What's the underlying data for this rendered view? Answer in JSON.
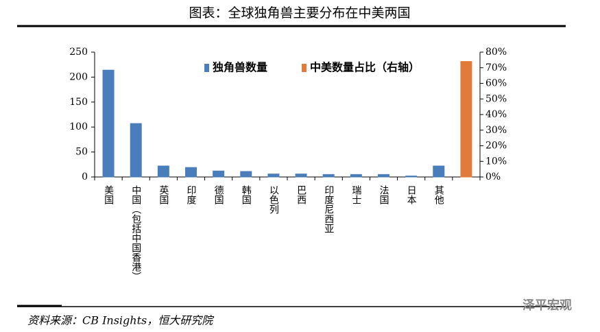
{
  "chart_data": {
    "type": "bar",
    "title": "图表：全球独角兽主要分布在中美两国",
    "source": "资料来源：CB Insights，恒大研究院",
    "watermark": "泽平宏观",
    "categories": [
      "美国",
      "中国（包括中国香港）",
      "英国",
      "印度",
      "德国",
      "韩国",
      "以色列",
      "巴西",
      "印度尼西亚",
      "瑞士",
      "法国",
      "日本",
      "其他",
      null
    ],
    "series": [
      {
        "name": "独角兽数量",
        "color": "#4a7ebb",
        "values": [
          214,
          107,
          22,
          19,
          12,
          11,
          6,
          6,
          5,
          5,
          5,
          2,
          22,
          null
        ]
      },
      {
        "name": "中美数量占比（右轴）",
        "color": "#e07b39",
        "axis": "y2",
        "values": [
          null,
          null,
          null,
          null,
          null,
          null,
          null,
          null,
          null,
          null,
          null,
          null,
          null,
          74
        ]
      }
    ],
    "ylim": [
      0,
      250
    ],
    "yticks": [
      0,
      50,
      100,
      150,
      200,
      250
    ],
    "y2lim": [
      0,
      80
    ],
    "y2ticks": [
      {
        "value": 0,
        "label": "0%"
      },
      {
        "value": 10,
        "label": "10%"
      },
      {
        "value": 20,
        "label": "20%"
      },
      {
        "value": 30,
        "label": "30%"
      },
      {
        "value": 40,
        "label": "40%"
      },
      {
        "value": 50,
        "label": "50%"
      },
      {
        "value": 60,
        "label": "60%"
      },
      {
        "value": 70,
        "label": "70%"
      },
      {
        "value": 80,
        "label": "80%"
      }
    ]
  }
}
